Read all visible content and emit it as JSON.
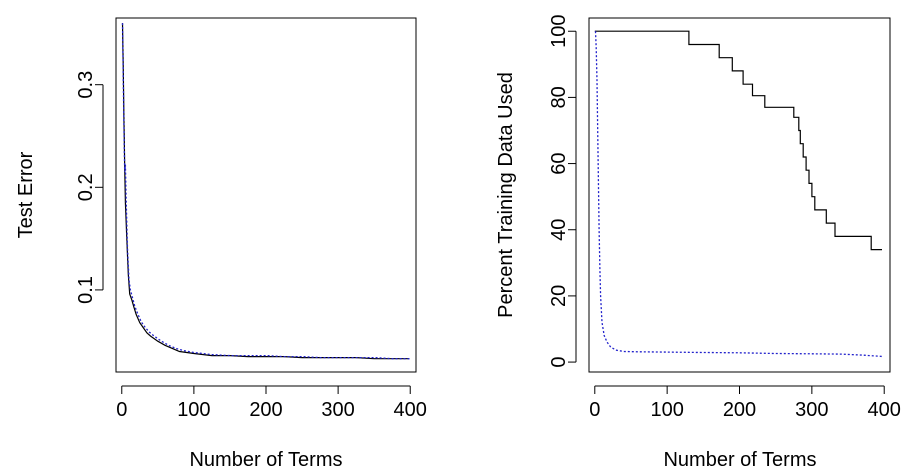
{
  "chart_data": [
    {
      "type": "line",
      "xlabel": "Number of Terms",
      "ylabel": "Test Error",
      "xlim": [
        -8,
        408
      ],
      "ylim": [
        0.02,
        0.365
      ],
      "x_ticks": [
        0,
        100,
        200,
        300,
        400
      ],
      "y_ticks": [
        0.1,
        0.2,
        0.3
      ],
      "x_tick_labels": [
        "0",
        "100",
        "200",
        "300",
        "400"
      ],
      "y_tick_labels": [
        "0.1",
        "0.2",
        "0.3"
      ],
      "series": [
        {
          "color": "#000000",
          "style": "solid",
          "points": [
            [
              1,
              0.36
            ],
            [
              2,
              0.32
            ],
            [
              3,
              0.27
            ],
            [
              4,
              0.22
            ],
            [
              5,
              0.185
            ],
            [
              7,
              0.15
            ],
            [
              9,
              0.115
            ],
            [
              11,
              0.096
            ],
            [
              14,
              0.09
            ],
            [
              17,
              0.083
            ],
            [
              20,
              0.076
            ],
            [
              25,
              0.068
            ],
            [
              30,
              0.063
            ],
            [
              35,
              0.058
            ],
            [
              40,
              0.055
            ],
            [
              50,
              0.05
            ],
            [
              60,
              0.046
            ],
            [
              70,
              0.043
            ],
            [
              80,
              0.04
            ],
            [
              90,
              0.039
            ],
            [
              100,
              0.038
            ],
            [
              125,
              0.036
            ],
            [
              150,
              0.036
            ],
            [
              175,
              0.035
            ],
            [
              200,
              0.035
            ],
            [
              225,
              0.035
            ],
            [
              250,
              0.034
            ],
            [
              275,
              0.034
            ],
            [
              300,
              0.034
            ],
            [
              325,
              0.034
            ],
            [
              350,
              0.033
            ],
            [
              375,
              0.033
            ],
            [
              399,
              0.033
            ]
          ]
        },
        {
          "color": "#2222cc",
          "style": "dotted",
          "points": [
            [
              1,
              0.36
            ],
            [
              2,
              0.31
            ],
            [
              3,
              0.26
            ],
            [
              4,
              0.215
            ],
            [
              5,
              0.222
            ],
            [
              6,
              0.19
            ],
            [
              8,
              0.14
            ],
            [
              10,
              0.11
            ],
            [
              12,
              0.1
            ],
            [
              15,
              0.092
            ],
            [
              18,
              0.084
            ],
            [
              22,
              0.077
            ],
            [
              27,
              0.069
            ],
            [
              32,
              0.064
            ],
            [
              38,
              0.059
            ],
            [
              45,
              0.055
            ],
            [
              55,
              0.05
            ],
            [
              65,
              0.046
            ],
            [
              75,
              0.043
            ],
            [
              85,
              0.041
            ],
            [
              100,
              0.039
            ],
            [
              125,
              0.037
            ],
            [
              150,
              0.036
            ],
            [
              175,
              0.036
            ],
            [
              200,
              0.036
            ],
            [
              225,
              0.035
            ],
            [
              250,
              0.035
            ],
            [
              275,
              0.034
            ],
            [
              300,
              0.034
            ],
            [
              325,
              0.034
            ],
            [
              350,
              0.034
            ],
            [
              375,
              0.033
            ],
            [
              399,
              0.033
            ]
          ]
        }
      ]
    },
    {
      "type": "line",
      "xlabel": "Number of Terms",
      "ylabel": "Percent Training Data Used",
      "xlim": [
        -8,
        408
      ],
      "ylim": [
        -3,
        104
      ],
      "x_ticks": [
        0,
        100,
        200,
        300,
        400
      ],
      "y_ticks": [
        0,
        20,
        40,
        60,
        80,
        100
      ],
      "x_tick_labels": [
        "0",
        "100",
        "200",
        "300",
        "400"
      ],
      "y_tick_labels": [
        "0",
        "20",
        "40",
        "60",
        "80",
        "100"
      ],
      "series": [
        {
          "color": "#000000",
          "style": "solid",
          "step": true,
          "points": [
            [
              0,
              100
            ],
            [
              130,
              100
            ],
            [
              130,
              96
            ],
            [
              172,
              96
            ],
            [
              172,
              92
            ],
            [
              190,
              92
            ],
            [
              190,
              88
            ],
            [
              205,
              88
            ],
            [
              205,
              84
            ],
            [
              218,
              84
            ],
            [
              218,
              80.5
            ],
            [
              235,
              80.5
            ],
            [
              235,
              77
            ],
            [
              275,
              77
            ],
            [
              275,
              74
            ],
            [
              282,
              74
            ],
            [
              282,
              70
            ],
            [
              284,
              70
            ],
            [
              284,
              66
            ],
            [
              288,
              66
            ],
            [
              288,
              62
            ],
            [
              292,
              62
            ],
            [
              292,
              58
            ],
            [
              296,
              58
            ],
            [
              296,
              54
            ],
            [
              300,
              54
            ],
            [
              300,
              50
            ],
            [
              304,
              50
            ],
            [
              304,
              46
            ],
            [
              320,
              46
            ],
            [
              320,
              42
            ],
            [
              332,
              42
            ],
            [
              332,
              38
            ],
            [
              382,
              38
            ],
            [
              382,
              34
            ],
            [
              397,
              34
            ]
          ]
        },
        {
          "color": "#2222cc",
          "style": "dotted",
          "points": [
            [
              1,
              100
            ],
            [
              2,
              95
            ],
            [
              3,
              85
            ],
            [
              4,
              70
            ],
            [
              5,
              55
            ],
            [
              6,
              40
            ],
            [
              7,
              28
            ],
            [
              8,
              20
            ],
            [
              10,
              12
            ],
            [
              13,
              8
            ],
            [
              17,
              6
            ],
            [
              22,
              4.5
            ],
            [
              30,
              3.6
            ],
            [
              40,
              3.2
            ],
            [
              60,
              3.1
            ],
            [
              100,
              3
            ],
            [
              150,
              2.9
            ],
            [
              200,
              2.8
            ],
            [
              250,
              2.6
            ],
            [
              300,
              2.5
            ],
            [
              340,
              2.4
            ],
            [
              370,
              2.1
            ],
            [
              398,
              1.7
            ]
          ]
        }
      ]
    }
  ]
}
